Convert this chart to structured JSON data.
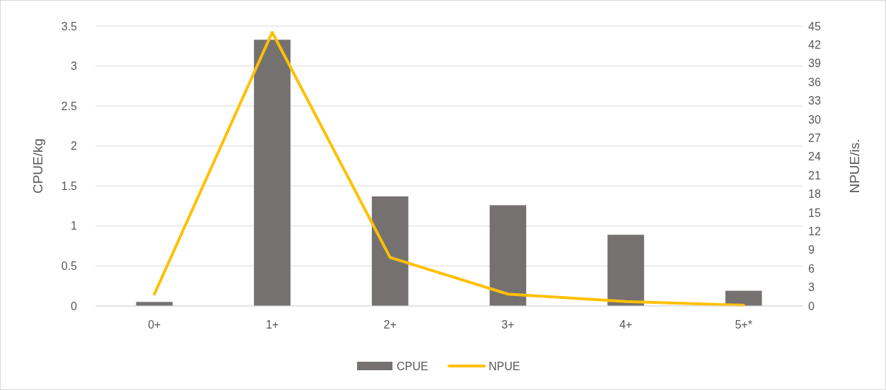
{
  "chart_data": {
    "type": "bar",
    "categories": [
      "0+",
      "1+",
      "2+",
      "3+",
      "4+",
      "5+*"
    ],
    "series": [
      {
        "name": "CPUE",
        "color": "#767171",
        "values": [
          0.05,
          3.33,
          1.37,
          1.26,
          0.89,
          0.19
        ]
      },
      {
        "name": "NPUE",
        "type": "line",
        "axis": "y2",
        "color": "#ffc000",
        "values": [
          1.9,
          44,
          7.8,
          1.9,
          0.7,
          0.1
        ]
      }
    ],
    "ylabel": "CPUE/kg",
    "y2label": "NPUE/is.",
    "ylim": [
      0,
      3.5
    ],
    "yticks": [
      0,
      0.5,
      1,
      1.5,
      2,
      2.5,
      3,
      3.5
    ],
    "y2lim": [
      0,
      45
    ],
    "y2ticks": [
      0,
      3,
      6,
      9,
      12,
      15,
      18,
      21,
      24,
      27,
      30,
      33,
      36,
      39,
      42,
      45
    ],
    "grid": "y",
    "legend": "bottom",
    "marker": "none"
  }
}
